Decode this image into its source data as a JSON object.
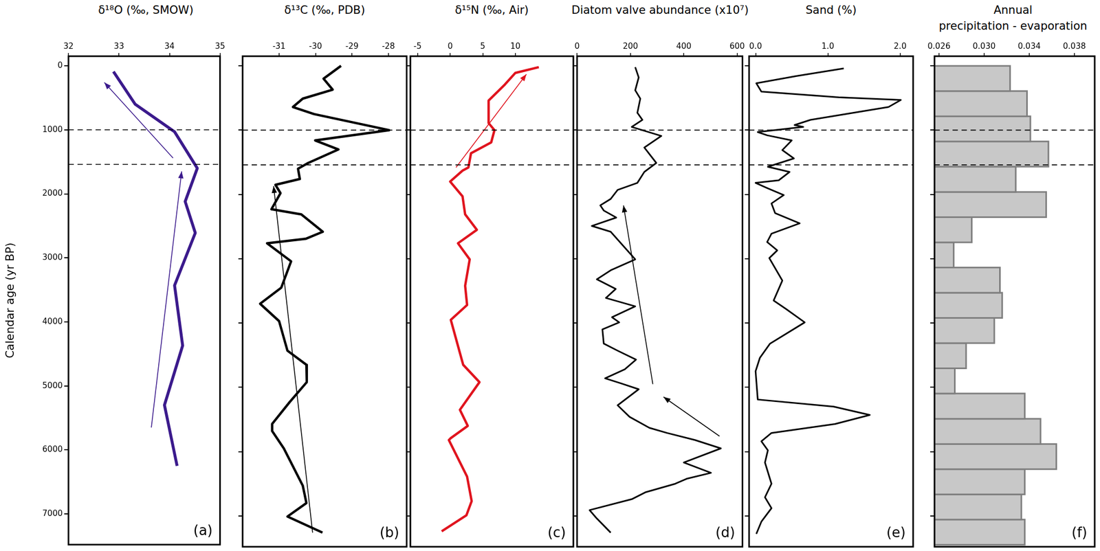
{
  "chart_data": [
    {
      "type": "line",
      "title": "δ¹⁸O (‰, SMOW)",
      "panel_label": "(a)",
      "ylabel": "Calendar age (yr BP)",
      "xlim": [
        32,
        35
      ],
      "xticks": [
        32,
        33,
        34,
        35
      ],
      "ylim": [
        -150,
        7480
      ],
      "yticks": [
        0,
        1000,
        2000,
        3000,
        4000,
        5000,
        6000,
        7000
      ],
      "tick_labels": true,
      "reference_lines": [
        1000,
        1540
      ],
      "series": [
        {
          "color": "#3b1a8c",
          "x": [
            32.89,
            33.32,
            34.1,
            34.55,
            34.31,
            34.51,
            34.1,
            34.26,
            33.9,
            34.15
          ],
          "y": [
            90,
            600,
            1030,
            1600,
            2120,
            2610,
            3430,
            4370,
            5300,
            6250
          ]
        }
      ],
      "arrows": [
        {
          "from": [
            33.64,
            5650
          ],
          "to": [
            34.24,
            1650
          ]
        },
        {
          "from": [
            34.07,
            1440
          ],
          "to": [
            32.71,
            260
          ]
        }
      ]
    },
    {
      "type": "line",
      "title": "δ¹³C (‰, PDB)",
      "panel_label": "(b)",
      "xlim": [
        -32,
        -27.5
      ],
      "xticks": [
        -31,
        -30,
        -29,
        -28
      ],
      "ylim": [
        -150,
        7480
      ],
      "yticks": [
        0,
        1000,
        2000,
        3000,
        4000,
        5000,
        6000,
        7000
      ],
      "tick_labels": "x",
      "reference_lines": [
        1000,
        1540
      ],
      "series": [
        {
          "color": "#000000",
          "x": [
            -29.3,
            -29.78,
            -29.53,
            -30.35,
            -30.62,
            -30.04,
            -27.98,
            -30.01,
            -29.37,
            -30.2,
            -30.48,
            -30.43,
            -31.1,
            -30.96,
            -31.21,
            -30.39,
            -29.8,
            -30.27,
            -31.33,
            -30.67,
            -30.94,
            -31.52,
            -31.0,
            -30.77,
            -30.25,
            -30.24,
            -30.71,
            -31.19,
            -31.19,
            -30.87,
            -30.35,
            -30.25,
            -30.77,
            -29.81
          ],
          "y": [
            0,
            200,
            370,
            510,
            640,
            750,
            1000,
            1160,
            1300,
            1510,
            1600,
            1760,
            1850,
            1980,
            2230,
            2310,
            2580,
            2690,
            2760,
            3040,
            3450,
            3700,
            3970,
            4430,
            4650,
            4920,
            5230,
            5570,
            5680,
            5950,
            6530,
            6800,
            7010,
            7260
          ]
        }
      ],
      "arrows": [
        {
          "from": [
            -30.08,
            7260
          ],
          "to": [
            -31.15,
            1870
          ]
        }
      ]
    },
    {
      "type": "line",
      "title": "δ¹⁵N (‰, Air)",
      "panel_label": "(c)",
      "xlim": [
        -6.1,
        18.9
      ],
      "xticks": [
        -5,
        0,
        5,
        10
      ],
      "ylim": [
        -150,
        7480
      ],
      "yticks": [
        0,
        1000,
        2000,
        3000,
        4000,
        5000,
        6000,
        7000
      ],
      "tick_labels": "x",
      "reference_lines": [
        1000,
        1540
      ],
      "series": [
        {
          "color": "#e0141e",
          "x": [
            13.6,
            10.0,
            8.4,
            5.9,
            5.9,
            6.8,
            6.3,
            3.2,
            2.8,
            1.9,
            0,
            1.9,
            2.3,
            4.1,
            1.2,
            3.0,
            2.3,
            2.6,
            0.1,
            2.0,
            4.5,
            1.5,
            2.7,
            0.1,
            -0.2,
            2.6,
            3.3,
            2.5,
            -1.3
          ],
          "y": [
            20,
            110,
            290,
            540,
            890,
            1000,
            1190,
            1360,
            1580,
            1630,
            1800,
            2030,
            2310,
            2550,
            2760,
            3010,
            3420,
            3720,
            3950,
            4650,
            4920,
            5350,
            5600,
            5790,
            5820,
            6390,
            6770,
            6990,
            7240
          ]
        }
      ],
      "arrows": [
        {
          "from": [
            0.9,
            1580
          ],
          "to": [
            11.7,
            130
          ]
        }
      ]
    },
    {
      "type": "line",
      "title": "Diatom valve abundance (x10⁷)",
      "panel_label": "(d)",
      "xlim": [
        0,
        620
      ],
      "xticks": [
        0,
        200,
        400,
        600
      ],
      "ylim": [
        -150,
        7480
      ],
      "yticks": [
        0,
        1000,
        2000,
        3000,
        4000,
        5000,
        6000,
        7000
      ],
      "tick_labels": "x",
      "reference_lines": [
        1000,
        1540
      ],
      "series": [
        {
          "color": "#000000",
          "x": [
            218,
            231,
            218,
            237,
            226,
            245,
            205,
            316,
            252,
            297,
            252,
            226,
            152,
            126,
            87,
            100,
            147,
            55,
            126,
            218,
            126,
            74,
            145,
            108,
            218,
            131,
            158,
            95,
            100,
            152,
            221,
            179,
            105,
            166,
            231,
            152,
            197,
            271,
            337,
            442,
            539,
            400,
            502,
            413,
            368,
            258,
            205,
            47,
            74,
            126
          ],
          "y": [
            20,
            180,
            380,
            510,
            730,
            840,
            950,
            1090,
            1270,
            1510,
            1650,
            1820,
            1930,
            2070,
            2170,
            2250,
            2360,
            2490,
            2580,
            3010,
            3180,
            3320,
            3470,
            3610,
            3740,
            3910,
            3990,
            4100,
            4320,
            4430,
            4570,
            4720,
            4860,
            4940,
            5030,
            5280,
            5460,
            5630,
            5710,
            5820,
            5950,
            6170,
            6330,
            6420,
            6500,
            6630,
            6740,
            6910,
            7040,
            7260
          ]
        }
      ],
      "arrows": [
        {
          "from": [
            284,
            4950
          ],
          "to": [
            174,
            2170
          ]
        },
        {
          "from": [
            534,
            5760
          ],
          "to": [
            324,
            5150
          ]
        }
      ]
    },
    {
      "type": "line",
      "title": "Sand (%)",
      "panel_label": "(e)",
      "xlim": [
        -0.09,
        2.18
      ],
      "xticks": [
        {
          "value": 0,
          "label": "0.0"
        },
        {
          "value": 1,
          "label": "1.0"
        },
        {
          "value": 2,
          "label": "2.0"
        }
      ],
      "ylim": [
        -150,
        7480
      ],
      "yticks": [
        0,
        1000,
        2000,
        3000,
        4000,
        5000,
        6000,
        7000
      ],
      "tick_labels": "x",
      "reference_lines": [
        1000,
        1540
      ],
      "series": [
        {
          "color": "#000000",
          "x": [
            1.22,
            0.56,
            0.01,
            0.08,
            1.15,
            2.01,
            1.84,
            0.76,
            0.54,
            0.66,
            0.03,
            0.16,
            0.5,
            0.37,
            0.53,
            0.17,
            0.47,
            0.32,
            0,
            0.16,
            0.39,
            0.22,
            0.27,
            0.61,
            0.22,
            0.16,
            0.3,
            0.19,
            0.37,
            0.25,
            0.42,
            0.68,
            0.2,
            0.06,
            0,
            0.03,
            1.08,
            1.58,
            1.1,
            0.22,
            0.08,
            0.17,
            0.13,
            0.22,
            0.13,
            0.22,
            0.08,
            0.01
          ],
          "y": [
            40,
            160,
            270,
            400,
            490,
            530,
            640,
            840,
            920,
            950,
            1030,
            1080,
            1160,
            1310,
            1440,
            1570,
            1650,
            1780,
            1820,
            1900,
            2010,
            2140,
            2290,
            2450,
            2610,
            2740,
            2870,
            2990,
            3340,
            3650,
            3780,
            3990,
            4320,
            4540,
            4750,
            5190,
            5300,
            5430,
            5570,
            5710,
            5840,
            5980,
            6170,
            6500,
            6710,
            6880,
            7090,
            7280
          ]
        }
      ],
      "arrows": []
    },
    {
      "type": "bar",
      "orientation": "horizontal",
      "title": [
        "Annual",
        "precipitation - evaporation"
      ],
      "panel_label": "(f)",
      "xlim": [
        0.0256,
        0.0398
      ],
      "xticks": [
        0.026,
        {
          "value": 0.03,
          "label": "0.030"
        },
        0.034,
        0.038
      ],
      "ylim": [
        -150,
        7480
      ],
      "yticks": [
        0,
        1000,
        2000,
        3000,
        4000,
        5000,
        6000,
        7000
      ],
      "tick_labels": "x",
      "reference_lines": [
        1000,
        1540
      ],
      "color": "#c8c8c8",
      "bins": [
        0,
        392,
        784,
        1176,
        1568,
        1961,
        2353,
        2745,
        3137,
        3529,
        3921,
        4313,
        4705,
        5097,
        5489,
        5882,
        6274,
        6666,
        7058,
        7450
      ],
      "values": [
        0.0323,
        0.0338,
        0.0341,
        0.0357,
        0.0328,
        0.0355,
        0.0289,
        0.0273,
        0.0314,
        0.0316,
        0.0309,
        0.0284,
        0.0274,
        0.0336,
        0.035,
        0.0364,
        0.0336,
        0.0333,
        0.0336
      ]
    }
  ]
}
